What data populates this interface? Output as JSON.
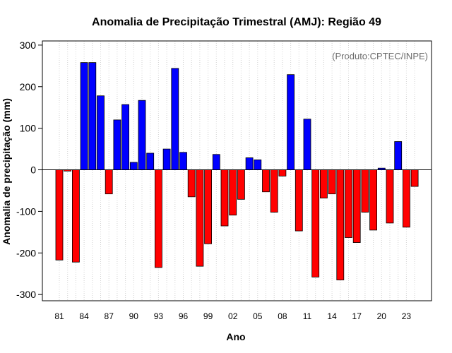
{
  "chart_data": {
    "type": "bar",
    "title": "Anomalia de Precipitação Trimestral (AMJ): Região 49",
    "xlabel": "Ano",
    "ylabel": "Anomalia de precipitação (mm)",
    "credit": "(Produto:CPTEC/INPE)",
    "ylim": [
      -315,
      310
    ],
    "yticks": [
      -300,
      -200,
      -100,
      0,
      100,
      200,
      300
    ],
    "years": [
      1981,
      1982,
      1983,
      1984,
      1985,
      1986,
      1987,
      1988,
      1989,
      1990,
      1991,
      1992,
      1993,
      1994,
      1995,
      1996,
      1997,
      1998,
      1999,
      2000,
      2001,
      2002,
      2003,
      2004,
      2005,
      2006,
      2007,
      2008,
      2009,
      2010,
      2011,
      2012,
      2013,
      2014,
      2015,
      2016,
      2017,
      2018,
      2019,
      2020,
      2021,
      2022,
      2023,
      2024
    ],
    "values": [
      -217,
      -3,
      -222,
      258,
      258,
      178,
      -58,
      120,
      157,
      18,
      167,
      40,
      -235,
      50,
      244,
      42,
      -65,
      -232,
      -178,
      37,
      -135,
      -109,
      -71,
      29,
      24,
      -53,
      -102,
      -15,
      229,
      -147,
      122,
      -258,
      -68,
      -58,
      -265,
      -163,
      -175,
      -102,
      -145,
      4,
      -128,
      68,
      -138,
      -40
    ],
    "xtick_labels": [
      "81",
      "84",
      "87",
      "90",
      "93",
      "96",
      "99",
      "02",
      "05",
      "08",
      "11",
      "14",
      "17",
      "20",
      "23"
    ],
    "colors": {
      "positive": "#0000ff",
      "negative": "#ff0000",
      "grid": "#d3d3d3",
      "credit": "#6b6b6b"
    }
  }
}
